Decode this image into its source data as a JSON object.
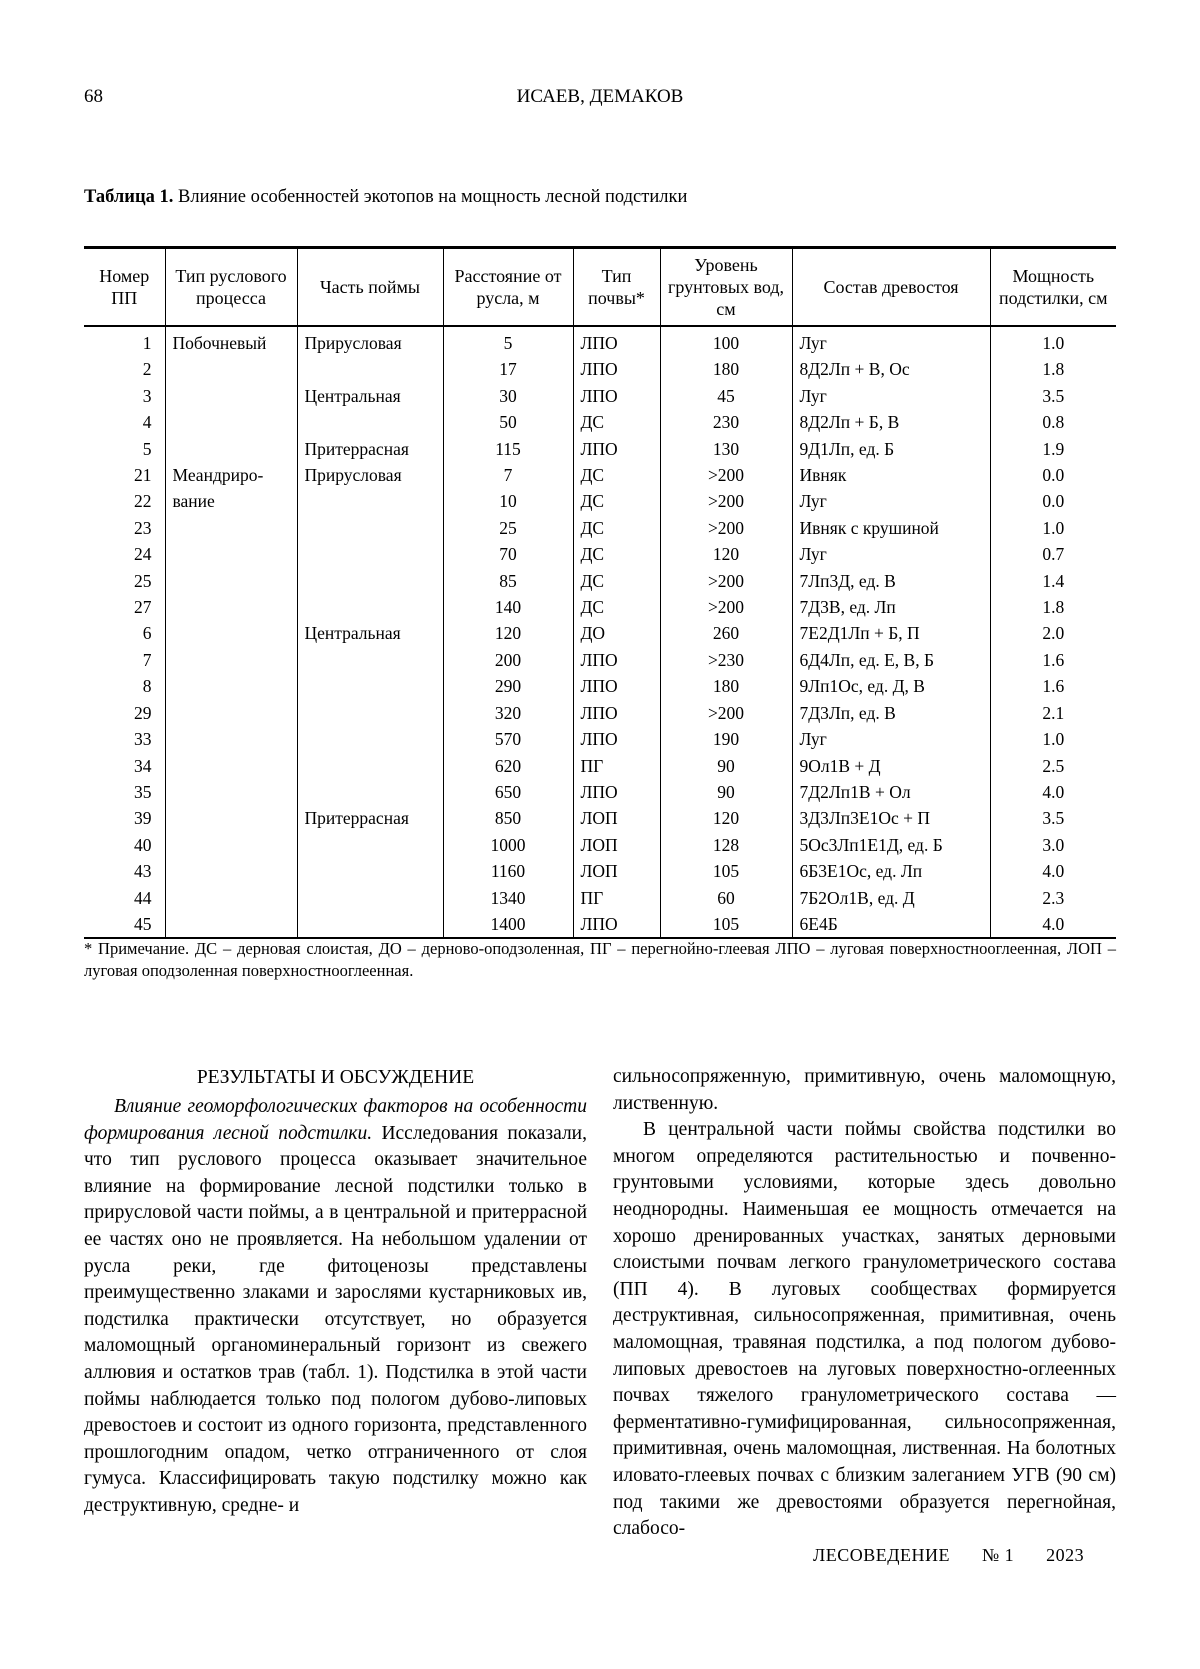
{
  "page": {
    "number": "68",
    "running_head": "ИСАЕВ, ДЕМАКОВ"
  },
  "table": {
    "caption_label": "Таблица 1.",
    "caption_text": "Влияние особенностей экотопов на мощность лесной подстилки",
    "columns": [
      "Номер ПП",
      "Тип руслового процесса",
      "Часть поймы",
      "Расстояние от русла, м",
      "Тип почвы*",
      "Уровень грунтовых вод, см",
      "Состав древостоя",
      "Мощность подстилки, см"
    ],
    "rows": [
      [
        "1",
        "Побочневый",
        "Прирусловая",
        "5",
        "ЛПО",
        "100",
        "Луг",
        "1.0"
      ],
      [
        "2",
        "",
        "",
        "17",
        "ЛПО",
        "180",
        "8Д2Лп + В, Ос",
        "1.8"
      ],
      [
        "3",
        "",
        "Центральная",
        "30",
        "ЛПО",
        "45",
        "Луг",
        "3.5"
      ],
      [
        "4",
        "",
        "",
        "50",
        "ДС",
        "230",
        "8Д2Лп + Б, В",
        "0.8"
      ],
      [
        "5",
        "",
        "Притеррасная",
        "115",
        "ЛПО",
        "130",
        "9Д1Лп, ед. Б",
        "1.9"
      ],
      [
        "21",
        "Меандриро-",
        "Прирусловая",
        "7",
        "ДС",
        ">200",
        "Ивняк",
        "0.0"
      ],
      [
        "22",
        "вание",
        "",
        "10",
        "ДС",
        ">200",
        "Луг",
        "0.0"
      ],
      [
        "23",
        "",
        "",
        "25",
        "ДС",
        ">200",
        "Ивняк с крушиной",
        "1.0"
      ],
      [
        "24",
        "",
        "",
        "70",
        "ДС",
        "120",
        "Луг",
        "0.7"
      ],
      [
        "25",
        "",
        "",
        "85",
        "ДС",
        ">200",
        "7Лп3Д, ед. В",
        "1.4"
      ],
      [
        "27",
        "",
        "",
        "140",
        "ДС",
        ">200",
        "7Д3В, ед. Лп",
        "1.8"
      ],
      [
        "6",
        "",
        "Центральная",
        "120",
        "ДО",
        "260",
        "7Е2Д1Лп + Б, П",
        "2.0"
      ],
      [
        "7",
        "",
        "",
        "200",
        "ЛПО",
        ">230",
        "6Д4Лп, ед. Е, В, Б",
        "1.6"
      ],
      [
        "8",
        "",
        "",
        "290",
        "ЛПО",
        "180",
        "9Лп1Ос, ед. Д, В",
        "1.6"
      ],
      [
        "29",
        "",
        "",
        "320",
        "ЛПО",
        ">200",
        "7Д3Лп, ед. В",
        "2.1"
      ],
      [
        "33",
        "",
        "",
        "570",
        "ЛПО",
        "190",
        "Луг",
        "1.0"
      ],
      [
        "34",
        "",
        "",
        "620",
        "ПГ",
        "90",
        "9Ол1В + Д",
        "2.5"
      ],
      [
        "35",
        "",
        "",
        "650",
        "ЛПО",
        "90",
        "7Д2Лп1В + Ол",
        "4.0"
      ],
      [
        "39",
        "",
        "Притеррасная",
        "850",
        "ЛОП",
        "120",
        "3Д3Лп3Е1Ос + П",
        "3.5"
      ],
      [
        "40",
        "",
        "",
        "1000",
        "ЛОП",
        "128",
        "5Ос3Лп1Е1Д, ед. Б",
        "3.0"
      ],
      [
        "43",
        "",
        "",
        "1160",
        "ЛОП",
        "105",
        "6Б3Е1Ос, ед. Лп",
        "4.0"
      ],
      [
        "44",
        "",
        "",
        "1340",
        "ПГ",
        "60",
        "7Б2Ол1В, ед. Д",
        "2.3"
      ],
      [
        "45",
        "",
        "",
        "1400",
        "ЛПО",
        "105",
        "6Е4Б",
        "4.0"
      ]
    ],
    "footnote": "* Примечание. ДС – дерновая слоистая, ДО – дерново-оподзоленная, ПГ – перегнойно-глеевая ЛПО – луговая поверхностнооглеенная, ЛОП – луговая оподзоленная поверхностнооглеенная."
  },
  "section": {
    "heading": "РЕЗУЛЬТАТЫ И ОБСУЖДЕНИЕ",
    "left": {
      "lead_italic": "Влияние геоморфологических факторов на особенности формирования лесной подстилки.",
      "text": "Исследования показали, что тип руслового процесса оказывает значительное влияние на формирование лесной подстилки только в прирусловой части поймы, а в центральной и притеррасной ее частях оно не проявляется. На небольшом удалении от русла реки, где фитоценозы представлены преимущественно злаками и зарослями кустарниковых ив, подстилка практически отсутствует, но образуется маломощный органоминеральный горизонт из свежего аллювия и остатков трав (табл. 1). Подстилка в этой части поймы наблюдается только под пологом дубово-липовых древостоев и состоит из одного горизонта, представленного прошлогодним опадом, четко отграниченного от слоя гумуса. Классифицировать такую подстилку можно как деструктивную, средне- и"
    },
    "right": {
      "continuation": "сильносопряженную, примитивную, очень маломощную, лиственную.",
      "paragraph": "В центральной части поймы свойства подстилки во многом определяются растительностью и почвенно-грунтовыми условиями, которые здесь довольно неоднородны. Наименьшая ее мощность отмечается на хорошо дренированных участках, занятых дерновыми слоистыми почвам легкого гранулометрического состава (ПП 4). В луговых сообществах формируется деструктивная, сильносопряженная, примитивная, очень маломощная, травяная подстилка, а под пологом дубово-липовых древостоев на луговых поверхностно-оглеенных почвах тяжелого гранулометрического состава — ферментативно-гумифицированная, сильносопряженная, примитивная, очень маломощная, лиственная. На болотных иловато-глеевых почвах с близким залеганием УГВ (90 см) под такими же древостоями образуется перегнойная, слабосо-"
    }
  },
  "footer": {
    "journal": "ЛЕСОВЕДЕНИЕ",
    "issue": "№ 1",
    "year": "2023"
  }
}
